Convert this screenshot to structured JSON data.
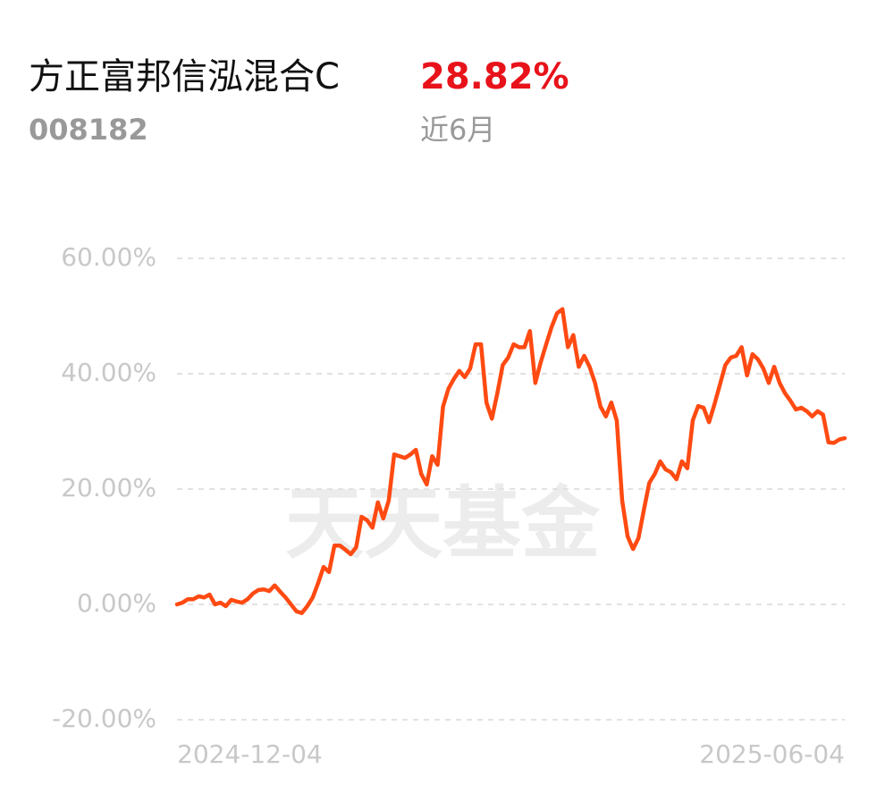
{
  "chart_data": {
    "type": "line",
    "title": "方正富邦信泓混合C",
    "code": "008182",
    "period_return": "28.82%",
    "period": "近6月",
    "watermark": "天天基金",
    "categories": [
      "2024-12-04",
      null,
      null,
      null,
      null,
      null,
      null,
      null,
      null,
      null,
      null,
      null,
      null,
      null,
      null,
      null,
      null,
      null,
      null,
      null,
      null,
      null,
      null,
      null,
      null,
      null,
      null,
      null,
      null,
      null,
      null,
      null,
      null,
      null,
      null,
      null,
      null,
      null,
      null,
      null,
      null,
      null,
      null,
      null,
      null,
      null,
      null,
      null,
      null,
      null,
      null,
      null,
      null,
      null,
      null,
      null,
      null,
      null,
      null,
      null,
      null,
      null,
      null,
      null,
      null,
      null,
      null,
      null,
      null,
      null,
      null,
      null,
      null,
      null,
      null,
      null,
      null,
      null,
      null,
      null,
      null,
      null,
      null,
      null,
      null,
      null,
      null,
      null,
      null,
      null,
      null,
      null,
      null,
      null,
      null,
      null,
      null,
      null,
      null,
      null,
      null,
      null,
      null,
      null,
      null,
      null,
      null,
      null,
      null,
      null,
      null,
      null,
      null,
      null,
      null,
      null,
      null,
      null,
      null,
      null,
      null,
      null,
      null,
      "2025-06-04"
    ],
    "series": [
      {
        "color": "#ff4a12",
        "values": [
          0,
          0.3,
          0.9,
          0.9,
          1.4,
          1.2,
          1.7,
          0,
          0.3,
          -0.3,
          0.8,
          0.5,
          0.3,
          0.9,
          1.9,
          2.5,
          2.6,
          2.3,
          3.3,
          2.2,
          1.2,
          0,
          -1.2,
          -1.5,
          -0.3,
          1.2,
          3.7,
          6.5,
          5.6,
          10.2,
          10.2,
          9.5,
          8.7,
          9.9,
          15.2,
          14.6,
          13.3,
          17.7,
          14.9,
          18.0,
          26.0,
          25.7,
          25.4,
          26.0,
          26.8,
          22.6,
          20.8,
          25.7,
          24.2,
          34.3,
          37.4,
          39.1,
          40.5,
          39.4,
          40.9,
          45.1,
          45.1,
          35.0,
          32.2,
          36.6,
          41.5,
          42.8,
          45.1,
          44.6,
          44.6,
          47.4,
          38.4,
          42.0,
          45.1,
          48.1,
          50.5,
          51.2,
          44.6,
          46.7,
          41.2,
          43.1,
          41.2,
          38.4,
          34.3,
          32.6,
          35.0,
          31.9,
          18.0,
          11.8,
          9.6,
          11.5,
          16.4,
          21.1,
          22.6,
          24.8,
          23.4,
          22.9,
          21.7,
          24.8,
          23.6,
          31.9,
          34.4,
          34.1,
          31.6,
          34.7,
          38.1,
          41.5,
          42.8,
          43.1,
          44.6,
          39.7,
          43.4,
          42.5,
          40.9,
          38.4,
          41.2,
          38.4,
          36.6,
          35.3,
          33.8,
          34.1,
          33.5,
          32.6,
          33.5,
          32.9,
          28.1,
          28.0,
          28.6,
          28.82
        ]
      }
    ],
    "ylim": [
      -20,
      60
    ],
    "yticks": [
      {
        "value": 60,
        "label": "60.00%"
      },
      {
        "value": 40,
        "label": "40.00%"
      },
      {
        "value": 20,
        "label": "20.00%"
      },
      {
        "value": 0,
        "label": "0.00%"
      },
      {
        "value": -20,
        "label": "-20.00%"
      }
    ],
    "grid": true
  }
}
